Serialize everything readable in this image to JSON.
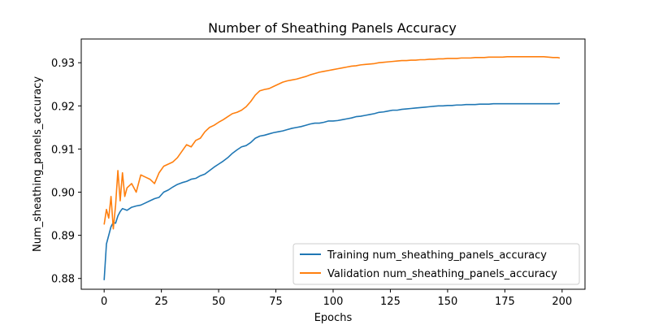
{
  "chart_data": {
    "type": "line",
    "title": "Number of Sheathing Panels Accuracy",
    "xlabel": "Epochs",
    "ylabel": "Num_sheathing_panels_accuracy",
    "xlim": [
      -10,
      210
    ],
    "ylim": [
      0.8775,
      0.9355
    ],
    "xticks": [
      0,
      25,
      50,
      75,
      100,
      125,
      150,
      175,
      200
    ],
    "xtick_labels": [
      "0",
      "25",
      "50",
      "75",
      "100",
      "125",
      "150",
      "175",
      "200"
    ],
    "yticks": [
      0.88,
      0.89,
      0.9,
      0.91,
      0.92,
      0.93
    ],
    "ytick_labels": [
      "0.88",
      "0.89",
      "0.90",
      "0.91",
      "0.92",
      "0.93"
    ],
    "grid": false,
    "legend_position": "lower-right",
    "series": [
      {
        "name": "Training num_sheathing_panels_accuracy",
        "color": "#1f77b4",
        "x": [
          0,
          1,
          2,
          3,
          4,
          5,
          6,
          7,
          8,
          9,
          10,
          12,
          14,
          16,
          18,
          20,
          22,
          24,
          26,
          28,
          30,
          32,
          34,
          36,
          38,
          40,
          42,
          44,
          46,
          48,
          50,
          52,
          54,
          56,
          58,
          60,
          62,
          64,
          66,
          68,
          70,
          72,
          74,
          76,
          78,
          80,
          82,
          84,
          86,
          88,
          90,
          92,
          94,
          96,
          98,
          100,
          102,
          104,
          106,
          108,
          110,
          112,
          114,
          116,
          118,
          120,
          122,
          124,
          126,
          128,
          130,
          132,
          134,
          136,
          138,
          140,
          142,
          144,
          146,
          148,
          150,
          152,
          154,
          156,
          158,
          160,
          162,
          164,
          166,
          168,
          170,
          172,
          174,
          176,
          178,
          180,
          182,
          184,
          186,
          188,
          190,
          192,
          194,
          196,
          198,
          199
        ],
        "values": [
          0.8796,
          0.888,
          0.89,
          0.892,
          0.893,
          0.8928,
          0.8945,
          0.8955,
          0.8962,
          0.896,
          0.8958,
          0.8965,
          0.8968,
          0.897,
          0.8975,
          0.898,
          0.8985,
          0.8988,
          0.9,
          0.9005,
          0.9012,
          0.9018,
          0.9022,
          0.9025,
          0.903,
          0.9032,
          0.9038,
          0.9042,
          0.905,
          0.9058,
          0.9065,
          0.9072,
          0.908,
          0.909,
          0.9098,
          0.9105,
          0.9108,
          0.9115,
          0.9125,
          0.913,
          0.9132,
          0.9135,
          0.9138,
          0.914,
          0.9142,
          0.9145,
          0.9148,
          0.915,
          0.9152,
          0.9155,
          0.9158,
          0.916,
          0.916,
          0.9162,
          0.9165,
          0.9165,
          0.9166,
          0.9168,
          0.917,
          0.9172,
          0.9175,
          0.9176,
          0.9178,
          0.918,
          0.9182,
          0.9185,
          0.9186,
          0.9188,
          0.919,
          0.919,
          0.9192,
          0.9193,
          0.9194,
          0.9195,
          0.9196,
          0.9197,
          0.9198,
          0.9199,
          0.92,
          0.92,
          0.9201,
          0.9201,
          0.9202,
          0.9202,
          0.9203,
          0.9203,
          0.9203,
          0.9204,
          0.9204,
          0.9204,
          0.9205,
          0.9205,
          0.9205,
          0.9205,
          0.9205,
          0.9205,
          0.9205,
          0.9205,
          0.9205,
          0.9205,
          0.9205,
          0.9205,
          0.9205,
          0.9205,
          0.9205,
          0.9206
        ]
      },
      {
        "name": "Validation num_sheathing_panels_accuracy",
        "color": "#ff7f0e",
        "x": [
          0,
          1,
          2,
          3,
          4,
          5,
          6,
          7,
          8,
          9,
          10,
          12,
          14,
          16,
          18,
          20,
          22,
          24,
          26,
          28,
          30,
          32,
          34,
          36,
          38,
          40,
          42,
          44,
          46,
          48,
          50,
          52,
          54,
          56,
          58,
          60,
          62,
          64,
          66,
          68,
          70,
          72,
          74,
          76,
          78,
          80,
          82,
          84,
          86,
          88,
          90,
          92,
          94,
          96,
          98,
          100,
          102,
          104,
          106,
          108,
          110,
          112,
          114,
          116,
          118,
          120,
          122,
          124,
          126,
          128,
          130,
          132,
          134,
          136,
          138,
          140,
          142,
          144,
          146,
          148,
          150,
          152,
          154,
          156,
          158,
          160,
          162,
          164,
          166,
          168,
          170,
          172,
          174,
          176,
          178,
          180,
          182,
          184,
          186,
          188,
          190,
          192,
          194,
          196,
          198,
          199
        ],
        "values": [
          0.8925,
          0.896,
          0.894,
          0.899,
          0.8915,
          0.897,
          0.905,
          0.898,
          0.9045,
          0.899,
          0.901,
          0.902,
          0.9,
          0.904,
          0.9035,
          0.903,
          0.902,
          0.9045,
          0.906,
          0.9065,
          0.907,
          0.908,
          0.9095,
          0.911,
          0.9105,
          0.912,
          0.9125,
          0.914,
          0.915,
          0.9155,
          0.9162,
          0.9168,
          0.9175,
          0.9182,
          0.9185,
          0.919,
          0.9198,
          0.921,
          0.9225,
          0.9235,
          0.9238,
          0.924,
          0.9245,
          0.925,
          0.9255,
          0.9258,
          0.926,
          0.9262,
          0.9265,
          0.9268,
          0.9272,
          0.9275,
          0.9278,
          0.928,
          0.9282,
          0.9284,
          0.9286,
          0.9288,
          0.929,
          0.9292,
          0.9293,
          0.9295,
          0.9296,
          0.9297,
          0.9298,
          0.93,
          0.9301,
          0.9302,
          0.9303,
          0.9304,
          0.9305,
          0.9305,
          0.9306,
          0.9306,
          0.9307,
          0.9307,
          0.9308,
          0.9308,
          0.9309,
          0.9309,
          0.931,
          0.931,
          0.931,
          0.9311,
          0.9311,
          0.9311,
          0.9312,
          0.9312,
          0.9312,
          0.9313,
          0.9313,
          0.9313,
          0.9313,
          0.9314,
          0.9314,
          0.9314,
          0.9314,
          0.9314,
          0.9314,
          0.9314,
          0.9314,
          0.9314,
          0.9313,
          0.9312,
          0.9312,
          0.9311
        ]
      }
    ]
  }
}
